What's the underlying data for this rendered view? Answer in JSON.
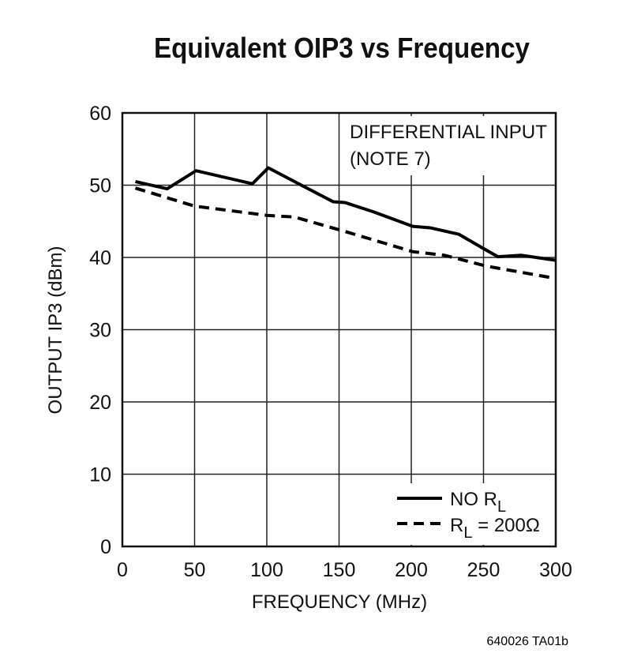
{
  "chart_data": {
    "type": "line",
    "title": "Equivalent OIP3 vs Frequency",
    "xlabel": "FREQUENCY (MHz)",
    "ylabel": "OUTPUT IP3 (dBm)",
    "xlim": [
      0,
      300
    ],
    "ylim": [
      0,
      60
    ],
    "xticks": [
      0,
      50,
      100,
      150,
      200,
      250,
      300
    ],
    "yticks": [
      0,
      10,
      20,
      30,
      40,
      50,
      60
    ],
    "grid": true,
    "legend_position": "bottom-right",
    "annotation": [
      "DIFFERENTIAL INPUT",
      "(NOTE 7)"
    ],
    "series": [
      {
        "name": "NO R_L",
        "legend_main": "NO R",
        "legend_sub": "L",
        "style": "solid",
        "color": "#000000",
        "x": [
          9,
          31,
          51,
          90,
          101,
          123,
          146,
          154,
          174,
          201,
          213,
          233,
          252,
          260,
          276,
          300
        ],
        "y": [
          50.5,
          49.5,
          52.0,
          50.2,
          52.4,
          50.1,
          47.7,
          47.6,
          46.3,
          44.3,
          44.1,
          43.2,
          41.0,
          40.1,
          40.3,
          39.6
        ]
      },
      {
        "name": "R_L = 200Ω",
        "legend_main": "R",
        "legend_sub": "L",
        "legend_rest": " = 200Ω",
        "style": "dashed",
        "color": "#000000",
        "x": [
          9,
          50,
          101,
          119,
          154,
          201,
          223,
          252,
          297
        ],
        "y": [
          49.6,
          47.1,
          45.8,
          45.6,
          43.6,
          40.8,
          40.3,
          38.8,
          37.2
        ]
      }
    ]
  },
  "footer_code": "640026 TA01b"
}
